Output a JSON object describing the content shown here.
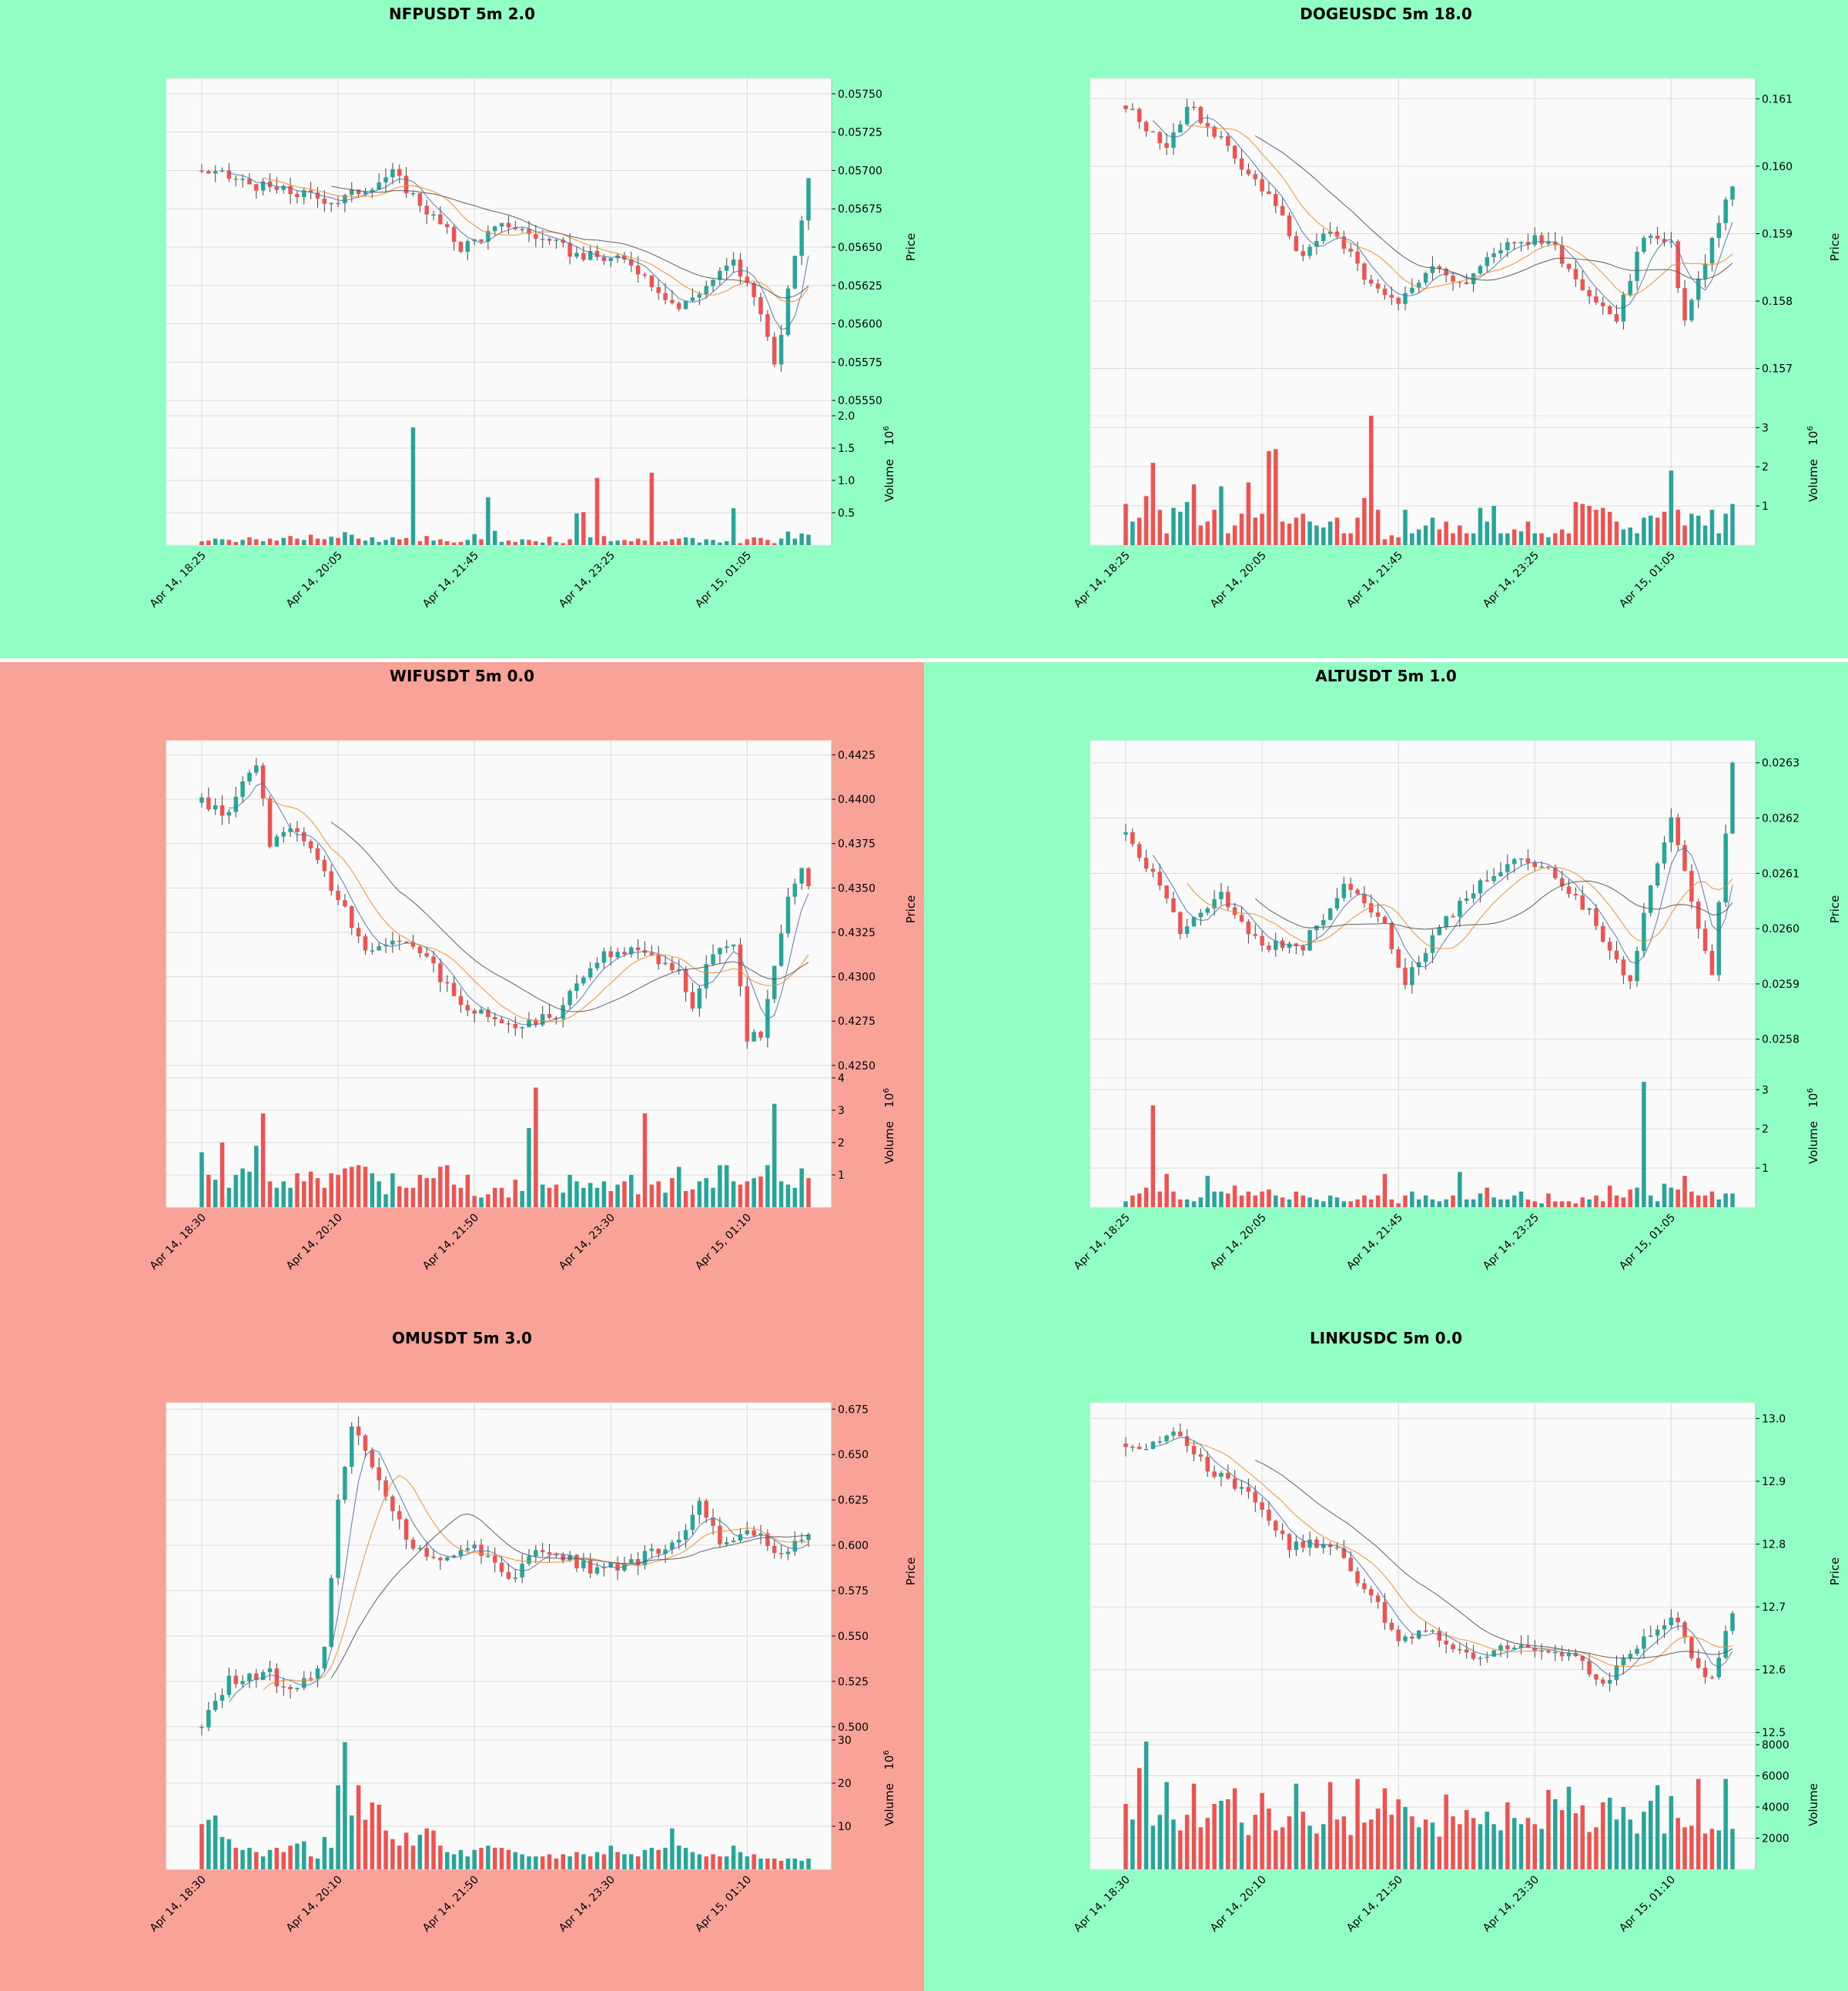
{
  "colors": {
    "up": "#26a69a",
    "down": "#ef5350",
    "bg_good": "#91ffc4",
    "bg_bad": "#f9a398",
    "panel": "#fafafa",
    "grid": "#d9d9d9",
    "ma_fast": "#4c72b0",
    "ma_mid": "#f08a24",
    "ma_slow": "#555555"
  },
  "price_label": "Price",
  "volume_label": "Volume",
  "chart_data": [
    {
      "type": "candlestick",
      "title": "NFPUSDT 5m 2.0",
      "background": "green",
      "ylim": [
        0.0554,
        0.0576
      ],
      "yticks": [
        0.0555,
        0.05575,
        0.056,
        0.05625,
        0.0565,
        0.05675,
        0.057,
        0.05725,
        0.0575
      ],
      "ydecimals": 5,
      "vol_ylim": [
        0,
        2.0
      ],
      "vol_ticks": [
        0.5,
        1.0,
        1.5,
        2.0
      ],
      "vol_tick_labels": [
        "0.5",
        "1.0",
        "1.5",
        "2.0"
      ],
      "vol_exp": "6",
      "xticks": [
        "Apr 14, 18:25",
        "Apr 14, 20:05",
        "Apr 14, 21:45",
        "Apr 14, 23:25",
        "Apr 15, 01:05"
      ],
      "xtick_idx": [
        0,
        20,
        40,
        60,
        80
      ],
      "n": 90,
      "start": 0.057,
      "end": 0.05695,
      "path": [
        [
          0,
          0.057
        ],
        [
          10,
          0.05688
        ],
        [
          20,
          0.0568
        ],
        [
          28,
          0.05698
        ],
        [
          38,
          0.0565
        ],
        [
          45,
          0.05665
        ],
        [
          55,
          0.05645
        ],
        [
          63,
          0.0564
        ],
        [
          70,
          0.0561
        ],
        [
          78,
          0.0564
        ],
        [
          82,
          0.0561
        ],
        [
          84,
          0.0557
        ],
        [
          86,
          0.0562
        ],
        [
          89,
          0.05695
        ]
      ],
      "vol": [
        0.06,
        0.07,
        0.1,
        0.09,
        0.08,
        0.05,
        0.08,
        0.12,
        0.09,
        0.06,
        0.1,
        0.07,
        0.11,
        0.14,
        0.1,
        0.08,
        0.16,
        0.1,
        0.09,
        0.13,
        0.11,
        0.2,
        0.16,
        0.1,
        0.07,
        0.12,
        0.05,
        0.08,
        0.12,
        0.09,
        0.11,
        1.82,
        0.06,
        0.14,
        0.07,
        0.09,
        0.06,
        0.04,
        0.05,
        0.08,
        0.17,
        0.09,
        0.74,
        0.22,
        0.05,
        0.07,
        0.05,
        0.09,
        0.08,
        0.06,
        0.04,
        0.13,
        0.05,
        0.03,
        0.09,
        0.49,
        0.51,
        0.12,
        1.04,
        0.14,
        0.06,
        0.07,
        0.08,
        0.06,
        0.1,
        0.07,
        1.12,
        0.05,
        0.06,
        0.09,
        0.1,
        0.12,
        0.11,
        0.04,
        0.09,
        0.08,
        0.04,
        0.06,
        0.57,
        0.03,
        0.09,
        0.12,
        0.11,
        0.08,
        0.03,
        0.1,
        0.21,
        0.1,
        0.18,
        0.16
      ]
    },
    {
      "type": "candlestick",
      "title": "DOGEUSDC 5m 18.0",
      "background": "green",
      "ylim": [
        0.1563,
        0.1613
      ],
      "yticks": [
        0.157,
        0.158,
        0.159,
        0.16,
        0.161
      ],
      "ydecimals": 3,
      "vol_ylim": [
        0,
        3.3
      ],
      "vol_ticks": [
        1,
        2,
        3
      ],
      "vol_tick_labels": [
        "1",
        "2",
        "3"
      ],
      "vol_exp": "6",
      "xticks": [
        "Apr 14, 18:25",
        "Apr 14, 20:05",
        "Apr 14, 21:45",
        "Apr 14, 23:25",
        "Apr 15, 01:05"
      ],
      "xtick_idx": [
        0,
        20,
        40,
        60,
        80
      ],
      "n": 90,
      "start": 0.1609,
      "end": 0.1597,
      "path": [
        [
          0,
          0.1609
        ],
        [
          6,
          0.1603
        ],
        [
          9,
          0.1609
        ],
        [
          14,
          0.1604
        ],
        [
          22,
          0.1594
        ],
        [
          26,
          0.1586
        ],
        [
          30,
          0.1591
        ],
        [
          36,
          0.1582
        ],
        [
          40,
          0.1579
        ],
        [
          44,
          0.1585
        ],
        [
          50,
          0.1583
        ],
        [
          56,
          0.1589
        ],
        [
          62,
          0.1589
        ],
        [
          68,
          0.1581
        ],
        [
          72,
          0.1577
        ],
        [
          76,
          0.159
        ],
        [
          80,
          0.1588
        ],
        [
          82,
          0.1577
        ],
        [
          86,
          0.1589
        ],
        [
          89,
          0.1597
        ]
      ],
      "vol": [
        1.05,
        0.6,
        0.7,
        1.25,
        2.1,
        0.9,
        0.3,
        0.95,
        0.85,
        1.1,
        1.55,
        0.5,
        0.6,
        0.9,
        1.5,
        0.3,
        0.5,
        0.8,
        1.6,
        0.7,
        0.8,
        2.4,
        2.45,
        0.6,
        0.55,
        0.7,
        0.8,
        0.6,
        0.5,
        0.45,
        0.6,
        0.7,
        0.3,
        0.3,
        0.7,
        1.2,
        3.3,
        0.9,
        0.15,
        0.25,
        0.2,
        0.9,
        0.3,
        0.4,
        0.5,
        0.7,
        0.4,
        0.6,
        0.3,
        0.5,
        0.3,
        0.3,
        0.95,
        0.6,
        1.0,
        0.3,
        0.3,
        0.4,
        0.35,
        0.6,
        0.3,
        0.3,
        0.2,
        0.3,
        0.4,
        0.3,
        1.1,
        1.05,
        1.0,
        0.9,
        0.95,
        0.85,
        0.6,
        0.4,
        0.45,
        0.3,
        0.7,
        0.75,
        0.7,
        0.85,
        1.9,
        0.9,
        0.5,
        0.8,
        0.75,
        0.5,
        0.9,
        0.3,
        0.8,
        1.05
      ]
    },
    {
      "type": "candlestick",
      "title": "WIFUSDT 5m 0.0",
      "background": "red",
      "ylim": [
        0.4243,
        0.4433
      ],
      "yticks": [
        0.425,
        0.4275,
        0.43,
        0.4325,
        0.435,
        0.4375,
        0.44,
        0.4425
      ],
      "ydecimals": 4,
      "vol_ylim": [
        0,
        4.0
      ],
      "vol_ticks": [
        1,
        2,
        3,
        4
      ],
      "vol_tick_labels": [
        "1",
        "2",
        "3",
        "4"
      ],
      "vol_exp": "6",
      "xticks": [
        "Apr 14, 18:30",
        "Apr 14, 20:10",
        "Apr 14, 21:50",
        "Apr 14, 23:30",
        "Apr 15, 01:10"
      ],
      "xtick_idx": [
        0,
        20,
        40,
        60,
        80
      ],
      "n": 90,
      "start": 0.4398,
      "end": 0.4351,
      "path": [
        [
          0,
          0.4398
        ],
        [
          4,
          0.4392
        ],
        [
          8,
          0.4422
        ],
        [
          10,
          0.4375
        ],
        [
          14,
          0.4383
        ],
        [
          18,
          0.4358
        ],
        [
          24,
          0.4315
        ],
        [
          30,
          0.4322
        ],
        [
          34,
          0.4305
        ],
        [
          38,
          0.4285
        ],
        [
          46,
          0.4273
        ],
        [
          52,
          0.4278
        ],
        [
          58,
          0.431
        ],
        [
          64,
          0.4318
        ],
        [
          70,
          0.4302
        ],
        [
          72,
          0.4282
        ],
        [
          75,
          0.4315
        ],
        [
          78,
          0.4318
        ],
        [
          80,
          0.4265
        ],
        [
          82,
          0.4268
        ],
        [
          86,
          0.4345
        ],
        [
          88,
          0.436
        ],
        [
          89,
          0.4351
        ]
      ],
      "vol": [
        1.7,
        1.0,
        0.85,
        2.0,
        0.6,
        1.0,
        1.2,
        1.1,
        1.9,
        2.9,
        0.8,
        0.6,
        0.8,
        0.6,
        1.05,
        0.8,
        1.1,
        0.9,
        0.6,
        1.05,
        1.0,
        1.2,
        1.25,
        1.3,
        1.25,
        1.05,
        0.8,
        0.4,
        1.05,
        0.65,
        0.6,
        0.6,
        1.0,
        0.9,
        0.9,
        1.25,
        1.3,
        0.7,
        0.6,
        1.0,
        0.35,
        0.3,
        0.4,
        0.6,
        0.6,
        0.3,
        0.85,
        0.5,
        2.45,
        3.7,
        0.7,
        0.6,
        0.7,
        0.45,
        1.0,
        0.8,
        0.6,
        0.75,
        0.6,
        0.8,
        0.5,
        0.7,
        0.8,
        1.0,
        0.4,
        2.9,
        0.7,
        0.8,
        0.45,
        0.9,
        1.25,
        0.5,
        0.55,
        0.8,
        0.9,
        0.6,
        1.3,
        1.3,
        0.8,
        0.7,
        0.8,
        0.9,
        0.95,
        1.3,
        3.2,
        0.8,
        0.7,
        0.6,
        1.2,
        0.9
      ]
    },
    {
      "type": "candlestick",
      "title": "ALTUSDT 5m 1.0",
      "background": "green",
      "ylim": [
        0.02573,
        0.02634
      ],
      "yticks": [
        0.0258,
        0.0259,
        0.026,
        0.0261,
        0.0262,
        0.0263
      ],
      "ydecimals": 4,
      "vol_ylim": [
        0,
        3.3
      ],
      "vol_ticks": [
        1,
        2,
        3
      ],
      "vol_tick_labels": [
        "1",
        "2",
        "3"
      ],
      "vol_exp": "6",
      "xticks": [
        "Apr 14, 18:25",
        "Apr 14, 20:05",
        "Apr 14, 21:45",
        "Apr 14, 23:25",
        "Apr 15, 01:05"
      ],
      "xtick_idx": [
        0,
        20,
        40,
        60,
        80
      ],
      "n": 90,
      "start": 0.02617,
      "end": 0.0263,
      "path": [
        [
          0,
          0.02617
        ],
        [
          5,
          0.02608
        ],
        [
          8,
          0.026
        ],
        [
          14,
          0.02606
        ],
        [
          20,
          0.02597
        ],
        [
          26,
          0.02597
        ],
        [
          32,
          0.02608
        ],
        [
          38,
          0.026
        ],
        [
          41,
          0.0259
        ],
        [
          46,
          0.026
        ],
        [
          52,
          0.02608
        ],
        [
          57,
          0.02612
        ],
        [
          63,
          0.0261
        ],
        [
          68,
          0.02603
        ],
        [
          74,
          0.0259
        ],
        [
          77,
          0.02608
        ],
        [
          80,
          0.0262
        ],
        [
          83,
          0.02605
        ],
        [
          86,
          0.02592
        ],
        [
          89,
          0.0263
        ]
      ],
      "vol": [
        0.15,
        0.3,
        0.35,
        0.5,
        2.6,
        0.4,
        0.85,
        0.4,
        0.2,
        0.2,
        0.15,
        0.25,
        0.8,
        0.4,
        0.4,
        0.35,
        0.55,
        0.3,
        0.4,
        0.3,
        0.4,
        0.45,
        0.3,
        0.25,
        0.2,
        0.4,
        0.3,
        0.25,
        0.2,
        0.15,
        0.3,
        0.25,
        0.15,
        0.15,
        0.2,
        0.3,
        0.2,
        0.3,
        0.85,
        0.2,
        0.1,
        0.3,
        0.4,
        0.2,
        0.3,
        0.2,
        0.15,
        0.2,
        0.3,
        0.9,
        0.2,
        0.2,
        0.35,
        0.5,
        0.25,
        0.2,
        0.2,
        0.3,
        0.4,
        0.2,
        0.15,
        0.1,
        0.35,
        0.15,
        0.15,
        0.15,
        0.1,
        0.25,
        0.2,
        0.3,
        0.15,
        0.55,
        0.3,
        0.25,
        0.45,
        0.5,
        3.2,
        0.3,
        0.15,
        0.6,
        0.5,
        0.45,
        0.8,
        0.4,
        0.3,
        0.3,
        0.4,
        0.2,
        0.35,
        0.35
      ]
    },
    {
      "type": "candlestick",
      "title": "OMUSDT 5m 3.0",
      "background": "red",
      "ylim": [
        0.4927,
        0.6785
      ],
      "yticks": [
        0.5,
        0.525,
        0.55,
        0.575,
        0.6,
        0.625,
        0.65,
        0.675
      ],
      "ydecimals": 3,
      "vol_ylim": [
        0,
        30
      ],
      "vol_ticks": [
        10,
        20,
        30
      ],
      "vol_tick_labels": [
        "10",
        "20",
        "30"
      ],
      "vol_exp": "6",
      "xticks": [
        "Apr 14, 18:30",
        "Apr 14, 20:10",
        "Apr 14, 21:50",
        "Apr 14, 23:30",
        "Apr 15, 01:10"
      ],
      "xtick_idx": [
        0,
        20,
        40,
        60,
        80
      ],
      "n": 90,
      "start": 0.5,
      "end": 0.606,
      "path": [
        [
          0,
          0.5
        ],
        [
          4,
          0.526
        ],
        [
          10,
          0.53
        ],
        [
          12,
          0.52
        ],
        [
          16,
          0.525
        ],
        [
          18,
          0.545
        ],
        [
          20,
          0.625
        ],
        [
          22,
          0.665
        ],
        [
          26,
          0.635
        ],
        [
          30,
          0.605
        ],
        [
          34,
          0.59
        ],
        [
          40,
          0.6
        ],
        [
          45,
          0.582
        ],
        [
          50,
          0.598
        ],
        [
          58,
          0.586
        ],
        [
          64,
          0.592
        ],
        [
          70,
          0.605
        ],
        [
          73,
          0.622
        ],
        [
          76,
          0.602
        ],
        [
          82,
          0.608
        ],
        [
          84,
          0.593
        ],
        [
          88,
          0.605
        ],
        [
          89,
          0.606
        ]
      ],
      "vol": [
        10.5,
        11.5,
        12.5,
        7.5,
        7.0,
        5.0,
        4.5,
        5.0,
        4.0,
        3.0,
        4.5,
        5.0,
        4.0,
        5.5,
        6.0,
        6.5,
        3.0,
        2.5,
        7.5,
        5.0,
        19.5,
        29.5,
        12.5,
        19.5,
        11.5,
        15.5,
        15.0,
        9.0,
        7.0,
        5.5,
        8.5,
        5.5,
        8.0,
        9.5,
        9.0,
        5.5,
        4.0,
        3.5,
        4.5,
        3.0,
        4.5,
        5.0,
        5.5,
        5.0,
        5.0,
        4.5,
        4.0,
        3.5,
        3.0,
        3.0,
        3.0,
        3.5,
        2.5,
        3.5,
        3.0,
        4.0,
        3.5,
        3.0,
        4.0,
        3.5,
        5.5,
        4.0,
        3.5,
        3.5,
        3.0,
        4.5,
        5.0,
        4.5,
        5.0,
        9.5,
        5.5,
        5.0,
        4.0,
        3.5,
        3.0,
        3.5,
        3.0,
        3.0,
        5.5,
        4.0,
        3.0,
        3.5,
        2.5,
        2.5,
        2.5,
        2.0,
        2.5,
        2.5,
        2.0,
        2.5
      ]
    },
    {
      "type": "candlestick",
      "title": "LINKUSDC 5m 0.0",
      "background": "green",
      "ylim": [
        12.488,
        13.025
      ],
      "yticks": [
        12.5,
        12.6,
        12.7,
        12.8,
        12.9,
        13.0
      ],
      "ydecimals": 1,
      "vol_ylim": [
        0,
        8300
      ],
      "vol_ticks": [
        2000,
        4000,
        6000,
        8000
      ],
      "vol_tick_labels": [
        "2000",
        "4000",
        "6000",
        "8000"
      ],
      "vol_exp": "",
      "xticks": [
        "Apr 14, 18:30",
        "Apr 14, 20:10",
        "Apr 14, 21:50",
        "Apr 14, 23:30",
        "Apr 15, 01:10"
      ],
      "xtick_idx": [
        0,
        20,
        40,
        60,
        80
      ],
      "n": 90,
      "start": 12.96,
      "end": 12.69,
      "path": [
        [
          0,
          12.96
        ],
        [
          4,
          12.955
        ],
        [
          8,
          12.98
        ],
        [
          12,
          12.92
        ],
        [
          18,
          12.88
        ],
        [
          24,
          12.8
        ],
        [
          30,
          12.8
        ],
        [
          36,
          12.72
        ],
        [
          40,
          12.64
        ],
        [
          44,
          12.66
        ],
        [
          50,
          12.62
        ],
        [
          56,
          12.64
        ],
        [
          64,
          12.63
        ],
        [
          70,
          12.58
        ],
        [
          74,
          12.63
        ],
        [
          80,
          12.69
        ],
        [
          84,
          12.6
        ],
        [
          86,
          12.58
        ],
        [
          89,
          12.69
        ]
      ],
      "vol": [
        4200,
        3200,
        6500,
        8200,
        2800,
        3500,
        5600,
        3200,
        2500,
        3500,
        5500,
        2700,
        3300,
        4200,
        4400,
        4500,
        5200,
        3000,
        2200,
        3500,
        4900,
        3900,
        2500,
        2700,
        3400,
        5500,
        3700,
        2800,
        2300,
        2900,
        5600,
        3200,
        3400,
        2200,
        5800,
        3000,
        3200,
        3900,
        5200,
        3500,
        4500,
        4000,
        3400,
        2700,
        3200,
        3000,
        2100,
        4800,
        3400,
        2900,
        3800,
        3300,
        2900,
        3700,
        2900,
        2500,
        4300,
        3300,
        2900,
        3300,
        2900,
        2600,
        5100,
        4500,
        3800,
        5300,
        3600,
        4100,
        2400,
        2700,
        4300,
        4600,
        3200,
        4000,
        3200,
        2300,
        3700,
        4400,
        5400,
        2300,
        4700,
        3300,
        2700,
        2800,
        5800,
        2300,
        2600,
        2500,
        5800,
        2600
      ]
    }
  ]
}
